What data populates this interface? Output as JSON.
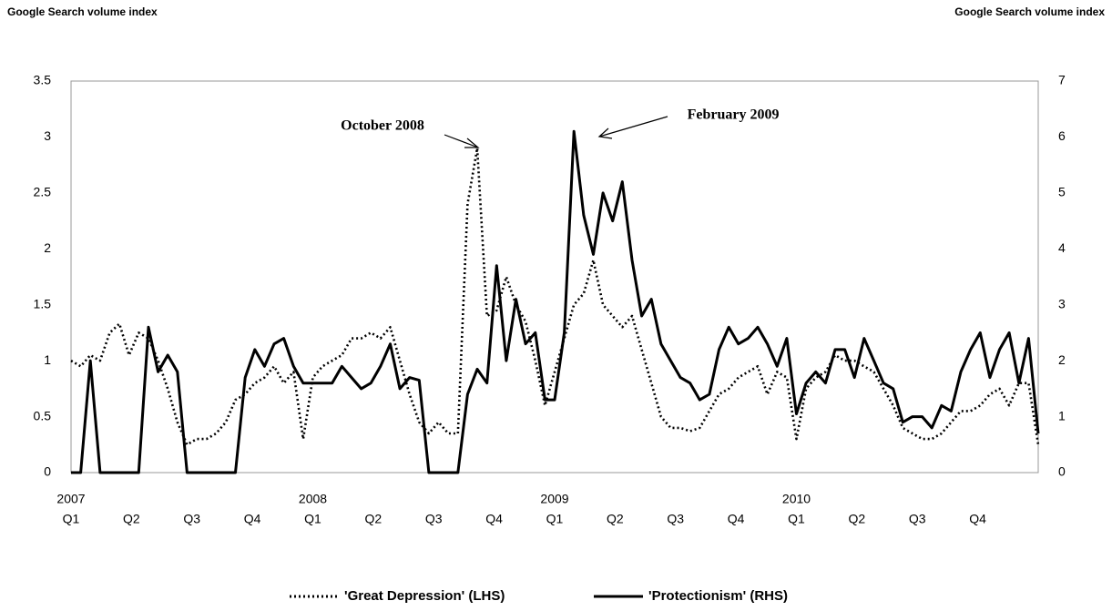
{
  "chart_data": {
    "type": "line",
    "y_axis_title": "Google Search volume index",
    "y2_axis_title": "Google Search volume index",
    "annotations": [
      {
        "text": "October 2008"
      },
      {
        "text": "February 2009"
      }
    ],
    "x": [
      2007,
      2007.04,
      2007.08,
      2007.12,
      2007.16,
      2007.2,
      2007.24,
      2007.28,
      2007.32,
      2007.36,
      2007.4,
      2007.44,
      2007.48,
      2007.52,
      2007.56,
      2007.6,
      2007.64,
      2007.68,
      2007.72,
      2007.76,
      2007.8,
      2007.84,
      2007.88,
      2007.92,
      2007.96,
      2008,
      2008.04,
      2008.08,
      2008.12,
      2008.16,
      2008.2,
      2008.24,
      2008.28,
      2008.32,
      2008.36,
      2008.4,
      2008.44,
      2008.48,
      2008.52,
      2008.56,
      2008.6,
      2008.64,
      2008.68,
      2008.72,
      2008.76,
      2008.8,
      2008.84,
      2008.88,
      2008.92,
      2008.96,
      2009,
      2009.04,
      2009.08,
      2009.12,
      2009.16,
      2009.2,
      2009.24,
      2009.28,
      2009.32,
      2009.36,
      2009.4,
      2009.44,
      2009.48,
      2009.52,
      2009.56,
      2009.6,
      2009.64,
      2009.68,
      2009.72,
      2009.76,
      2009.8,
      2009.84,
      2009.88,
      2009.92,
      2009.96,
      2010,
      2010.04,
      2010.08,
      2010.12,
      2010.16,
      2010.2,
      2010.24,
      2010.28,
      2010.32,
      2010.36,
      2010.4,
      2010.44,
      2010.48,
      2010.52,
      2010.56,
      2010.6,
      2010.64,
      2010.68,
      2010.72,
      2010.76,
      2010.8,
      2010.84,
      2010.88,
      2010.92,
      2010.96,
      2011
    ],
    "series": [
      {
        "name": "'Great Depression' (LHS)",
        "color": "#000000",
        "dash": "dotted",
        "values": [
          1.0,
          0.95,
          1.05,
          1.0,
          1.25,
          1.33,
          1.05,
          1.25,
          1.2,
          1.0,
          0.75,
          0.45,
          0.25,
          0.3,
          0.3,
          0.35,
          0.45,
          0.65,
          0.7,
          0.8,
          0.85,
          0.95,
          0.8,
          0.9,
          0.3,
          0.85,
          0.95,
          1.0,
          1.05,
          1.2,
          1.2,
          1.25,
          1.2,
          1.3,
          1.0,
          0.7,
          0.45,
          0.35,
          0.45,
          0.35,
          0.35,
          2.4,
          2.9,
          1.4,
          1.45,
          1.75,
          1.5,
          1.35,
          1.0,
          0.6,
          0.9,
          1.2,
          1.5,
          1.6,
          1.9,
          1.5,
          1.4,
          1.3,
          1.4,
          1.1,
          0.8,
          0.5,
          0.4,
          0.4,
          0.37,
          0.4,
          0.55,
          0.7,
          0.75,
          0.85,
          0.9,
          0.95,
          0.7,
          0.9,
          0.85,
          0.3,
          0.75,
          0.85,
          0.9,
          1.05,
          1.0,
          1.0,
          0.95,
          0.9,
          0.75,
          0.6,
          0.4,
          0.35,
          0.3,
          0.3,
          0.35,
          0.45,
          0.55,
          0.55,
          0.6,
          0.7,
          0.75,
          0.6,
          0.8,
          0.8,
          0.25
        ]
      },
      {
        "name": "'Protectionism' (RHS)",
        "color": "#000000",
        "dash": "solid",
        "axis": "y2",
        "values": [
          0,
          0,
          2.0,
          0,
          0,
          0,
          0,
          0,
          2.6,
          1.8,
          2.1,
          1.8,
          0,
          0,
          0,
          0,
          0,
          0,
          1.7,
          2.2,
          1.9,
          2.3,
          2.4,
          1.9,
          1.6,
          1.6,
          1.6,
          1.6,
          1.9,
          1.7,
          1.5,
          1.6,
          1.9,
          2.3,
          1.5,
          1.7,
          1.65,
          0,
          0,
          0,
          0,
          1.4,
          1.85,
          1.6,
          3.7,
          2.0,
          3.1,
          2.3,
          2.5,
          1.3,
          1.3,
          2.5,
          6.1,
          4.6,
          3.9,
          5.0,
          4.5,
          5.2,
          3.8,
          2.8,
          3.1,
          2.3,
          2.0,
          1.7,
          1.6,
          1.3,
          1.4,
          2.2,
          2.6,
          2.3,
          2.4,
          2.6,
          2.3,
          1.9,
          2.4,
          1.05,
          1.6,
          1.8,
          1.6,
          2.2,
          2.2,
          1.7,
          2.4,
          2.0,
          1.6,
          1.5,
          0.9,
          1.0,
          1.0,
          0.8,
          1.2,
          1.1,
          1.8,
          2.2,
          2.5,
          1.7,
          2.2,
          2.5,
          1.6,
          2.4,
          0.7
        ]
      }
    ],
    "xlim": [
      2007,
      2011
    ],
    "xticks": [
      {
        "value": 2007,
        "label": "Q1"
      },
      {
        "value": 2007.25,
        "label": "Q2"
      },
      {
        "value": 2007.5,
        "label": "Q3"
      },
      {
        "value": 2007.75,
        "label": "Q4"
      },
      {
        "value": 2008,
        "label": "Q1"
      },
      {
        "value": 2008.25,
        "label": "Q2"
      },
      {
        "value": 2008.5,
        "label": "Q3"
      },
      {
        "value": 2008.75,
        "label": "Q4"
      },
      {
        "value": 2009,
        "label": "Q1"
      },
      {
        "value": 2009.25,
        "label": "Q2"
      },
      {
        "value": 2009.5,
        "label": "Q3"
      },
      {
        "value": 2009.75,
        "label": "Q4"
      },
      {
        "value": 2010,
        "label": "Q1"
      },
      {
        "value": 2010.25,
        "label": "Q2"
      },
      {
        "value": 2010.5,
        "label": "Q3"
      },
      {
        "value": 2010.75,
        "label": "Q4"
      }
    ],
    "year_labels": [
      2007,
      2008,
      2009,
      2010
    ],
    "ylim": [
      0,
      3.5
    ],
    "yticks": [
      0,
      0.5,
      1,
      1.5,
      2,
      2.5,
      3,
      3.5
    ],
    "y2lim": [
      0,
      7
    ],
    "y2ticks": [
      0,
      1,
      2,
      3,
      4,
      5,
      6,
      7
    ],
    "grid": false,
    "legend": "bottom"
  }
}
